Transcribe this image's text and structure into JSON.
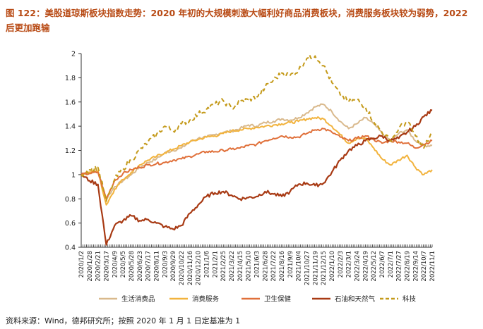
{
  "title": "图 122：美股道琼斯板块指数走势：2020 年初的大规模刺激大幅利好商品消费板块，消费服务板块较为弱势，2022 后更加跑输",
  "source": "资料来源：Wind，德邦研究所；按照 2020 年 1 月 1 日定基准为 1",
  "chart_data": {
    "type": "line",
    "ylim": [
      0.4,
      2.0
    ],
    "yticks": [
      "0.4",
      "0.6",
      "0.8",
      "1",
      "1.2",
      "1.4",
      "1.6",
      "1.8",
      "2"
    ],
    "categories": [
      "2020/1/2",
      "2020/1/28",
      "2020/2/21",
      "2020/3/17",
      "2020/4/9",
      "2020/5/5",
      "2020/5/28",
      "2020/6/23",
      "2020/7/17",
      "2020/8/11",
      "2020/9/3",
      "2020/9/29",
      "2020/10/22",
      "2020/11/16",
      "2020/12/10",
      "2021/1/6",
      "2021/2/1",
      "2021/2/25",
      "2021/3/22",
      "2021/4/15",
      "2021/5/10",
      "2021/6/3",
      "2021/6/28",
      "2021/7/22",
      "2021/8/16",
      "2021/9/9",
      "2021/10/4",
      "2021/10/27",
      "2021/11/19",
      "2021/12/15",
      "2022/1/10",
      "2022/2/3",
      "2022/3/1",
      "2022/3/24",
      "2022/4/19",
      "2022/5/12",
      "2022/6/7",
      "2022/7/1",
      "2022/7/27",
      "2022/8/19",
      "2022/9/14",
      "2022/10/7",
      "2022/11/1"
    ],
    "series": [
      {
        "name": "生活消费品",
        "color": "#d9b98c",
        "dashed": false,
        "values": [
          1.0,
          1.02,
          1.03,
          0.8,
          0.9,
          0.95,
          1.0,
          1.06,
          1.1,
          1.13,
          1.18,
          1.2,
          1.22,
          1.27,
          1.3,
          1.31,
          1.33,
          1.35,
          1.36,
          1.38,
          1.41,
          1.4,
          1.43,
          1.44,
          1.46,
          1.45,
          1.47,
          1.51,
          1.56,
          1.58,
          1.52,
          1.44,
          1.38,
          1.42,
          1.47,
          1.42,
          1.34,
          1.28,
          1.34,
          1.37,
          1.28,
          1.24,
          1.24
        ]
      },
      {
        "name": "消费服务",
        "color": "#f2b33d",
        "dashed": false,
        "values": [
          1.0,
          1.02,
          1.03,
          0.75,
          0.88,
          0.96,
          1.02,
          1.08,
          1.12,
          1.15,
          1.18,
          1.21,
          1.24,
          1.27,
          1.29,
          1.31,
          1.32,
          1.34,
          1.36,
          1.37,
          1.38,
          1.39,
          1.4,
          1.41,
          1.42,
          1.43,
          1.44,
          1.46,
          1.47,
          1.46,
          1.4,
          1.33,
          1.26,
          1.3,
          1.3,
          1.22,
          1.13,
          1.08,
          1.12,
          1.16,
          1.06,
          1.0,
          1.04
        ]
      },
      {
        "name": "卫生保健",
        "color": "#e0703a",
        "dashed": false,
        "values": [
          1.0,
          1.01,
          1.02,
          0.8,
          0.95,
          1.01,
          1.04,
          1.06,
          1.08,
          1.09,
          1.1,
          1.12,
          1.13,
          1.15,
          1.17,
          1.19,
          1.19,
          1.2,
          1.21,
          1.22,
          1.24,
          1.25,
          1.28,
          1.3,
          1.32,
          1.31,
          1.31,
          1.34,
          1.37,
          1.38,
          1.35,
          1.31,
          1.28,
          1.3,
          1.32,
          1.29,
          1.26,
          1.28,
          1.27,
          1.26,
          1.22,
          1.25,
          1.28
        ]
      },
      {
        "name": "石油和天然气",
        "color": "#a83a14",
        "dashed": false,
        "values": [
          1.0,
          0.95,
          0.92,
          0.42,
          0.58,
          0.62,
          0.66,
          0.62,
          0.63,
          0.6,
          0.57,
          0.55,
          0.58,
          0.68,
          0.75,
          0.82,
          0.85,
          0.86,
          0.83,
          0.8,
          0.81,
          0.82,
          0.86,
          0.84,
          0.82,
          0.86,
          0.92,
          0.93,
          0.91,
          0.93,
          1.02,
          1.12,
          1.2,
          1.24,
          1.28,
          1.3,
          1.32,
          1.28,
          1.3,
          1.35,
          1.4,
          1.48,
          1.53
        ]
      },
      {
        "name": "科技",
        "color": "#c49a1a",
        "dashed": true,
        "values": [
          1.0,
          1.04,
          1.06,
          0.78,
          0.96,
          1.05,
          1.12,
          1.2,
          1.27,
          1.33,
          1.4,
          1.36,
          1.42,
          1.45,
          1.5,
          1.54,
          1.58,
          1.61,
          1.55,
          1.6,
          1.62,
          1.64,
          1.72,
          1.78,
          1.84,
          1.82,
          1.86,
          1.96,
          1.98,
          1.9,
          1.76,
          1.66,
          1.6,
          1.62,
          1.56,
          1.44,
          1.35,
          1.28,
          1.38,
          1.44,
          1.32,
          1.22,
          1.35
        ]
      }
    ]
  }
}
